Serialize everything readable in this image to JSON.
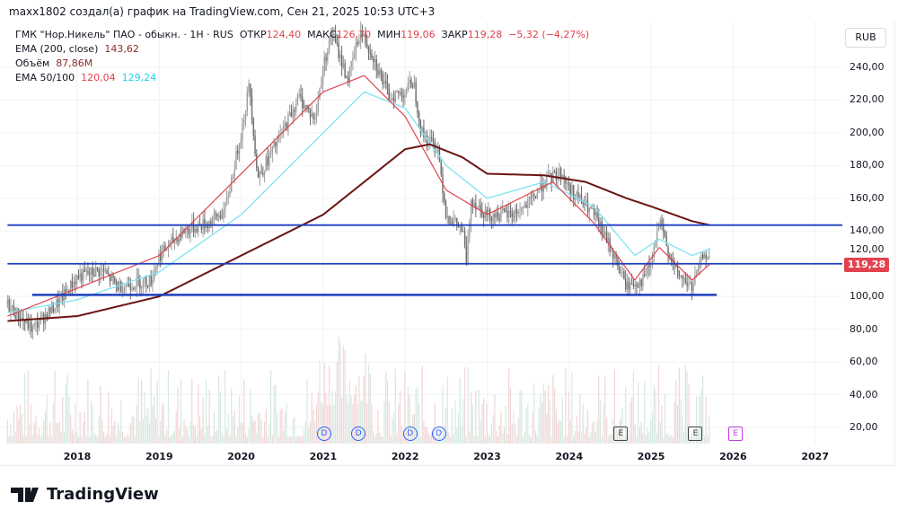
{
  "attribution": "maxx1802 создал(а) график на TradingView.com, Сен 21, 2025 10:53 UTC+3",
  "legend": {
    "symbol": "ГМК \"Нор.Никель\" ПАО - обыкн. · 1Н · RUS",
    "open_label": "ОТКР",
    "open": "124,40",
    "high_label": "МАКС",
    "high": "126,70",
    "low_label": "МИН",
    "low": "119,06",
    "close_label": "ЗАКР",
    "close": "119,28",
    "change": "−5,32 (−4,27%)",
    "ema200_label": "EMA (200, close)",
    "ema200": "143,62",
    "volume_label": "Объём",
    "volume": "87,86M",
    "ema50_100_label": "EMA 50/100",
    "ema50": "120,04",
    "ema100": "129,24"
  },
  "currency": "RUB",
  "last_price": "119,28",
  "logo": "TradingView",
  "colors": {
    "up": "#9e9e9e",
    "down": "#6b6b6b",
    "ema50": "#e0434e",
    "ema100": "#7fe3ef",
    "ema200": "#6b1414",
    "hline": "#1e3fbf"
  },
  "chart_data": {
    "type": "line",
    "ylim": [
      10,
      265
    ],
    "xlim": [
      2017.15,
      2027.4
    ],
    "y_ticks": [
      "240,00",
      "220,00",
      "200,00",
      "180,00",
      "160,00",
      "140,00",
      "120,00",
      "100,00",
      "80,00",
      "60,00",
      "40,00",
      "20,00"
    ],
    "x_ticks": [
      "2018",
      "2019",
      "2020",
      "2021",
      "2022",
      "2023",
      "2024",
      "2025",
      "2026",
      "2027"
    ],
    "price": [
      [
        2017.15,
        95
      ],
      [
        2017.45,
        80
      ],
      [
        2017.8,
        98
      ],
      [
        2018.0,
        112
      ],
      [
        2018.3,
        116
      ],
      [
        2018.5,
        106
      ],
      [
        2018.9,
        110
      ],
      [
        2019.0,
        125
      ],
      [
        2019.3,
        140
      ],
      [
        2019.6,
        145
      ],
      [
        2019.8,
        152
      ],
      [
        2020.0,
        200
      ],
      [
        2020.1,
        230
      ],
      [
        2020.2,
        172
      ],
      [
        2020.5,
        200
      ],
      [
        2020.7,
        222
      ],
      [
        2020.9,
        208
      ],
      [
        2021.0,
        240
      ],
      [
        2021.1,
        262
      ],
      [
        2021.3,
        232
      ],
      [
        2021.45,
        262
      ],
      [
        2021.6,
        248
      ],
      [
        2021.8,
        222
      ],
      [
        2022.0,
        225
      ],
      [
        2022.1,
        232
      ],
      [
        2022.2,
        200
      ],
      [
        2022.4,
        190
      ],
      [
        2022.5,
        150
      ],
      [
        2022.7,
        140
      ],
      [
        2022.75,
        120
      ],
      [
        2022.8,
        160
      ],
      [
        2023.0,
        150
      ],
      [
        2023.3,
        150
      ],
      [
        2023.5,
        156
      ],
      [
        2023.7,
        170
      ],
      [
        2023.9,
        176
      ],
      [
        2024.0,
        166
      ],
      [
        2024.3,
        150
      ],
      [
        2024.5,
        130
      ],
      [
        2024.7,
        106
      ],
      [
        2024.9,
        110
      ],
      [
        2025.0,
        120
      ],
      [
        2025.1,
        145
      ],
      [
        2025.3,
        115
      ],
      [
        2025.5,
        105
      ],
      [
        2025.6,
        120
      ],
      [
        2025.65,
        128
      ],
      [
        2025.72,
        119.28
      ]
    ],
    "ema200": [
      [
        2017.15,
        85
      ],
      [
        2018,
        88
      ],
      [
        2019,
        100
      ],
      [
        2020,
        125
      ],
      [
        2021,
        150
      ],
      [
        2021.5,
        170
      ],
      [
        2022,
        190
      ],
      [
        2022.3,
        193
      ],
      [
        2022.7,
        185
      ],
      [
        2023,
        175
      ],
      [
        2023.7,
        174
      ],
      [
        2024.2,
        170
      ],
      [
        2024.7,
        160
      ],
      [
        2025,
        155
      ],
      [
        2025.5,
        146
      ],
      [
        2025.72,
        143.6
      ]
    ],
    "ema100": [
      [
        2017.15,
        90
      ],
      [
        2018,
        98
      ],
      [
        2019,
        115
      ],
      [
        2020,
        150
      ],
      [
        2021,
        200
      ],
      [
        2021.5,
        225
      ],
      [
        2022,
        215
      ],
      [
        2022.5,
        180
      ],
      [
        2023,
        160
      ],
      [
        2023.7,
        170
      ],
      [
        2024.3,
        155
      ],
      [
        2024.8,
        125
      ],
      [
        2025.1,
        135
      ],
      [
        2025.5,
        125
      ],
      [
        2025.72,
        129.2
      ]
    ],
    "ema50": [
      [
        2017.15,
        88
      ],
      [
        2018,
        105
      ],
      [
        2019,
        125
      ],
      [
        2020,
        175
      ],
      [
        2021,
        225
      ],
      [
        2021.5,
        235
      ],
      [
        2022,
        210
      ],
      [
        2022.5,
        165
      ],
      [
        2023,
        150
      ],
      [
        2023.8,
        170
      ],
      [
        2024.3,
        145
      ],
      [
        2024.8,
        110
      ],
      [
        2025.1,
        130
      ],
      [
        2025.5,
        110
      ],
      [
        2025.72,
        120
      ]
    ],
    "levels": [
      {
        "value": 143.6,
        "from": 2017.15
      },
      {
        "value": 120,
        "from": 2017.15
      },
      {
        "value": 101,
        "from": 2017.45,
        "to": 2025.8
      }
    ],
    "events": [
      {
        "type": "D",
        "t": 2021.0
      },
      {
        "type": "D",
        "t": 2021.42
      },
      {
        "type": "D",
        "t": 2022.05
      },
      {
        "type": "D",
        "t": 2022.4
      },
      {
        "type": "E",
        "t": 2024.62
      },
      {
        "type": "E",
        "t": 2025.53
      },
      {
        "type": "E-upcoming",
        "t": 2026.02
      }
    ]
  }
}
